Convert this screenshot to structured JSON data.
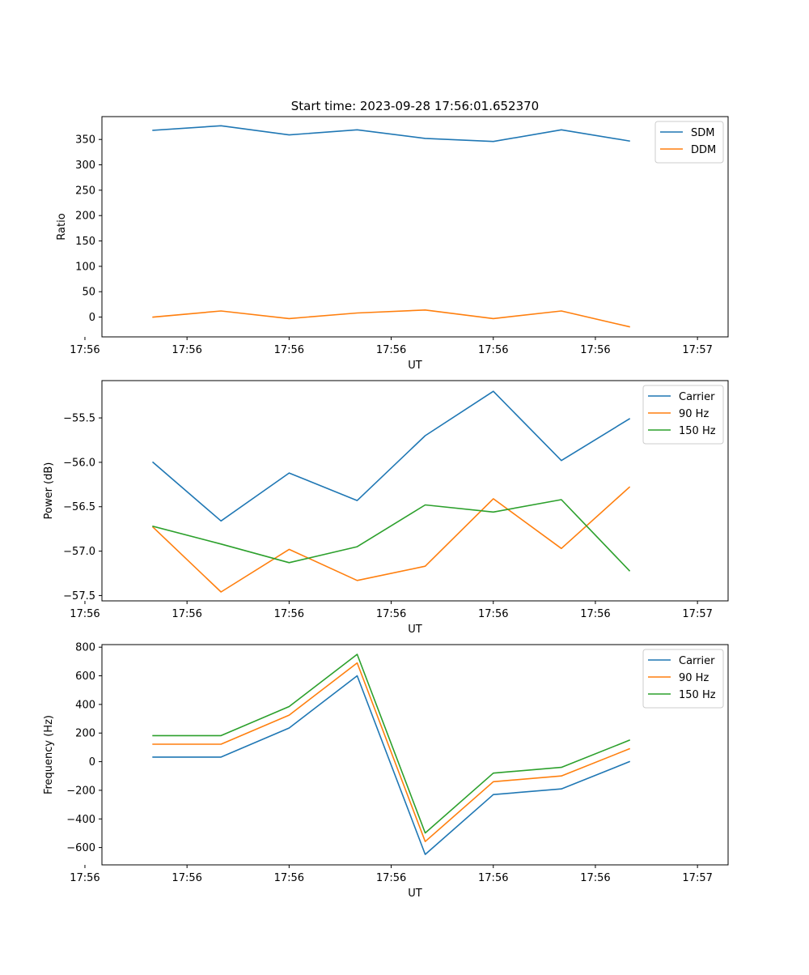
{
  "figure": {
    "title": "Start time: 2023-09-28 17:56:01.652370"
  },
  "chart_data": [
    {
      "type": "line",
      "title": "Start time: 2023-09-28 17:56:01.652370",
      "xlabel": "UT",
      "ylabel": "Ratio",
      "x": [
        1,
        2,
        3,
        4,
        5,
        6,
        7,
        8
      ],
      "xlim": [
        0.25,
        9.45
      ],
      "ylim": [
        -39,
        395
      ],
      "x_ticks": [
        {
          "pos": 0.0,
          "label": "17:56"
        },
        {
          "pos": 1.5,
          "label": "17:56"
        },
        {
          "pos": 3.0,
          "label": "17:56"
        },
        {
          "pos": 4.5,
          "label": "17:56"
        },
        {
          "pos": 6.0,
          "label": "17:56"
        },
        {
          "pos": 7.5,
          "label": "17:56"
        },
        {
          "pos": 9.0,
          "label": "17:57"
        }
      ],
      "y_ticks": [
        {
          "pos": 0,
          "label": "0"
        },
        {
          "pos": 50,
          "label": "50"
        },
        {
          "pos": 100,
          "label": "100"
        },
        {
          "pos": 150,
          "label": "150"
        },
        {
          "pos": 200,
          "label": "200"
        },
        {
          "pos": 250,
          "label": "250"
        },
        {
          "pos": 300,
          "label": "300"
        },
        {
          "pos": 350,
          "label": "350"
        }
      ],
      "legend": "top-right",
      "series": [
        {
          "name": "SDM",
          "color": "#1f77b4",
          "values": [
            368,
            377,
            359,
            369,
            352,
            346,
            369,
            347
          ]
        },
        {
          "name": "DDM",
          "color": "#ff7f0e",
          "values": [
            0,
            12,
            -3,
            8,
            14,
            -3,
            12,
            -19
          ]
        }
      ]
    },
    {
      "type": "line",
      "title": "",
      "xlabel": "UT",
      "ylabel": "Power (dB)",
      "x": [
        1,
        2,
        3,
        4,
        5,
        6,
        7,
        8
      ],
      "xlim": [
        0.25,
        9.45
      ],
      "ylim": [
        -57.56,
        -55.08
      ],
      "x_ticks": [
        {
          "pos": 0.0,
          "label": "17:56"
        },
        {
          "pos": 1.5,
          "label": "17:56"
        },
        {
          "pos": 3.0,
          "label": "17:56"
        },
        {
          "pos": 4.5,
          "label": "17:56"
        },
        {
          "pos": 6.0,
          "label": "17:56"
        },
        {
          "pos": 7.5,
          "label": "17:56"
        },
        {
          "pos": 9.0,
          "label": "17:57"
        }
      ],
      "y_ticks": [
        {
          "pos": -57.5,
          "label": "−57.5"
        },
        {
          "pos": -57.0,
          "label": "−57.0"
        },
        {
          "pos": -56.5,
          "label": "−56.5"
        },
        {
          "pos": -56.0,
          "label": "−56.0"
        },
        {
          "pos": -55.5,
          "label": "−55.5"
        }
      ],
      "legend": "top-right",
      "series": [
        {
          "name": "Carrier",
          "color": "#1f77b4",
          "values": [
            -56.0,
            -56.66,
            -56.12,
            -56.43,
            -55.7,
            -55.2,
            -55.98,
            -55.51
          ]
        },
        {
          "name": "90 Hz",
          "color": "#ff7f0e",
          "values": [
            -56.73,
            -57.46,
            -56.98,
            -57.33,
            -57.17,
            -56.41,
            -56.97,
            -56.28
          ]
        },
        {
          "name": "150 Hz",
          "color": "#2ca02c",
          "values": [
            -56.72,
            -56.92,
            -57.13,
            -56.95,
            -56.48,
            -56.56,
            -56.42,
            -57.22
          ]
        }
      ]
    },
    {
      "type": "line",
      "title": "",
      "xlabel": "UT",
      "ylabel": "Frequency (Hz)",
      "x": [
        1,
        2,
        3,
        4,
        5,
        6,
        7,
        8
      ],
      "xlim": [
        0.25,
        9.45
      ],
      "ylim": [
        -721,
        818
      ],
      "x_ticks": [
        {
          "pos": 0.0,
          "label": "17:56"
        },
        {
          "pos": 1.5,
          "label": "17:56"
        },
        {
          "pos": 3.0,
          "label": "17:56"
        },
        {
          "pos": 4.5,
          "label": "17:56"
        },
        {
          "pos": 6.0,
          "label": "17:56"
        },
        {
          "pos": 7.5,
          "label": "17:56"
        },
        {
          "pos": 9.0,
          "label": "17:57"
        }
      ],
      "y_ticks": [
        {
          "pos": -600,
          "label": "−600"
        },
        {
          "pos": -400,
          "label": "−400"
        },
        {
          "pos": -200,
          "label": "−200"
        },
        {
          "pos": 0,
          "label": "0"
        },
        {
          "pos": 200,
          "label": "200"
        },
        {
          "pos": 400,
          "label": "400"
        },
        {
          "pos": 600,
          "label": "600"
        },
        {
          "pos": 800,
          "label": "800"
        }
      ],
      "legend": "top-right",
      "series": [
        {
          "name": "Carrier",
          "color": "#1f77b4",
          "values": [
            32,
            32,
            235,
            600,
            -648,
            -230,
            -190,
            0
          ]
        },
        {
          "name": "90 Hz",
          "color": "#ff7f0e",
          "values": [
            122,
            122,
            325,
            690,
            -558,
            -140,
            -100,
            90
          ]
        },
        {
          "name": "150 Hz",
          "color": "#2ca02c",
          "values": [
            182,
            182,
            385,
            750,
            -498,
            -80,
            -40,
            150
          ]
        }
      ]
    }
  ]
}
